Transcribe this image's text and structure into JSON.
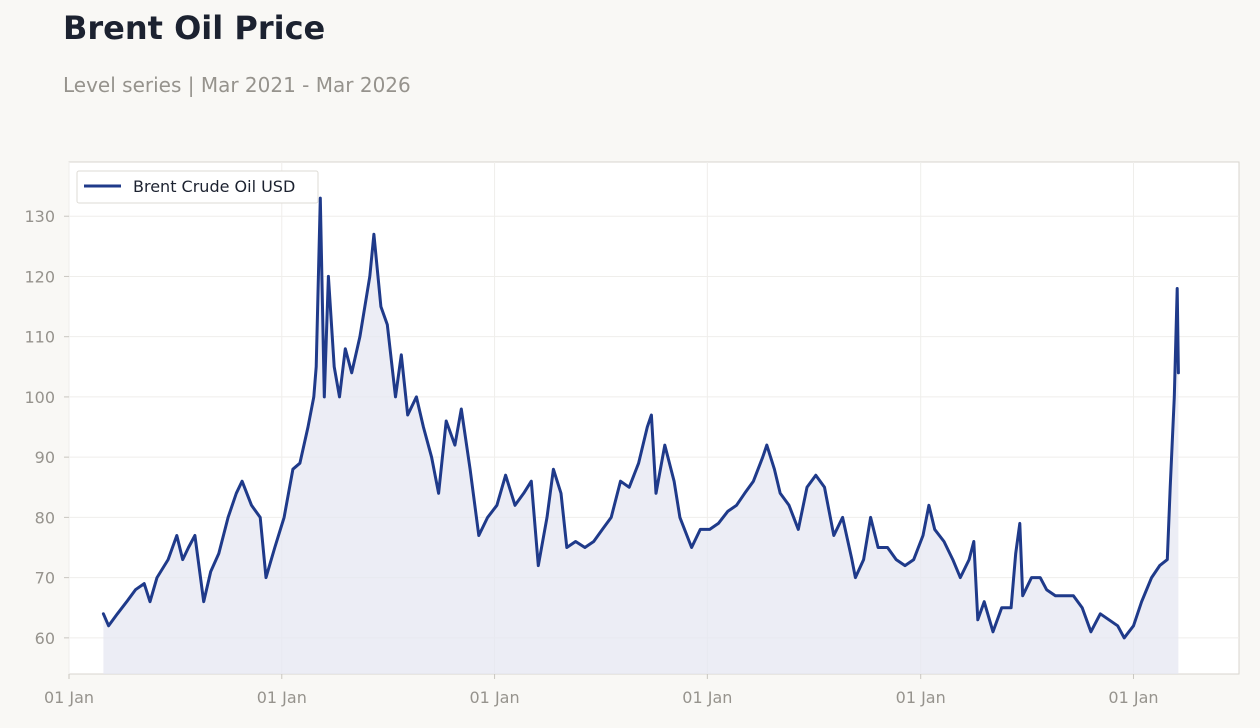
{
  "header": {
    "title": "Brent Oil Price",
    "subtitle": "Level series | Mar 2021 - Mar 2026"
  },
  "chart_data": {
    "type": "area",
    "title": "Brent Oil Price",
    "subtitle": "Level series | Mar 2021 - Mar 2026",
    "xlabel": "",
    "ylabel": "",
    "xlim": [
      "2021-01-01",
      "2026-07-01"
    ],
    "ylim": [
      54,
      139
    ],
    "y_ticks": [
      60,
      70,
      80,
      90,
      100,
      110,
      120,
      130
    ],
    "x_ticks": [
      {
        "date": "2021-01-01",
        "label": "01 Jan"
      },
      {
        "date": "2022-01-01",
        "label": "01 Jan"
      },
      {
        "date": "2023-01-01",
        "label": "01 Jan"
      },
      {
        "date": "2024-01-01",
        "label": "01 Jan"
      },
      {
        "date": "2025-01-01",
        "label": "01 Jan"
      },
      {
        "date": "2026-01-01",
        "label": "01 Jan"
      }
    ],
    "grid": true,
    "legend": {
      "position": "top-left"
    },
    "colors": {
      "line": "#1f3a8a",
      "fill": "#e6e7f1"
    },
    "series": [
      {
        "name": "Brent Crude Oil USD",
        "points": [
          [
            "2021-03-01",
            64
          ],
          [
            "2021-03-10",
            62
          ],
          [
            "2021-03-25",
            64
          ],
          [
            "2021-04-10",
            66
          ],
          [
            "2021-04-25",
            68
          ],
          [
            "2021-05-10",
            69
          ],
          [
            "2021-05-20",
            66
          ],
          [
            "2021-06-01",
            70
          ],
          [
            "2021-06-20",
            73
          ],
          [
            "2021-07-05",
            77
          ],
          [
            "2021-07-15",
            73
          ],
          [
            "2021-07-25",
            75
          ],
          [
            "2021-08-05",
            77
          ],
          [
            "2021-08-20",
            66
          ],
          [
            "2021-09-01",
            71
          ],
          [
            "2021-09-15",
            74
          ],
          [
            "2021-10-01",
            80
          ],
          [
            "2021-10-15",
            84
          ],
          [
            "2021-10-25",
            86
          ],
          [
            "2021-11-10",
            82
          ],
          [
            "2021-11-25",
            80
          ],
          [
            "2021-12-05",
            70
          ],
          [
            "2021-12-20",
            75
          ],
          [
            "2022-01-05",
            80
          ],
          [
            "2022-01-20",
            88
          ],
          [
            "2022-02-01",
            89
          ],
          [
            "2022-02-15",
            95
          ],
          [
            "2022-02-25",
            100
          ],
          [
            "2022-03-01",
            105
          ],
          [
            "2022-03-08",
            133
          ],
          [
            "2022-03-15",
            100
          ],
          [
            "2022-03-22",
            120
          ],
          [
            "2022-04-01",
            105
          ],
          [
            "2022-04-10",
            100
          ],
          [
            "2022-04-20",
            108
          ],
          [
            "2022-05-01",
            104
          ],
          [
            "2022-05-15",
            110
          ],
          [
            "2022-06-01",
            120
          ],
          [
            "2022-06-08",
            127
          ],
          [
            "2022-06-20",
            115
          ],
          [
            "2022-07-01",
            112
          ],
          [
            "2022-07-15",
            100
          ],
          [
            "2022-07-25",
            107
          ],
          [
            "2022-08-05",
            97
          ],
          [
            "2022-08-20",
            100
          ],
          [
            "2022-09-01",
            95
          ],
          [
            "2022-09-15",
            90
          ],
          [
            "2022-09-27",
            84
          ],
          [
            "2022-10-10",
            96
          ],
          [
            "2022-10-25",
            92
          ],
          [
            "2022-11-05",
            98
          ],
          [
            "2022-11-20",
            88
          ],
          [
            "2022-12-05",
            77
          ],
          [
            "2022-12-20",
            80
          ],
          [
            "2023-01-05",
            82
          ],
          [
            "2023-01-20",
            87
          ],
          [
            "2023-02-05",
            82
          ],
          [
            "2023-02-20",
            84
          ],
          [
            "2023-03-05",
            86
          ],
          [
            "2023-03-17",
            72
          ],
          [
            "2023-04-01",
            80
          ],
          [
            "2023-04-12",
            88
          ],
          [
            "2023-04-25",
            84
          ],
          [
            "2023-05-05",
            75
          ],
          [
            "2023-05-20",
            76
          ],
          [
            "2023-06-05",
            75
          ],
          [
            "2023-06-20",
            76
          ],
          [
            "2023-07-05",
            78
          ],
          [
            "2023-07-20",
            80
          ],
          [
            "2023-08-05",
            86
          ],
          [
            "2023-08-20",
            85
          ],
          [
            "2023-09-05",
            89
          ],
          [
            "2023-09-20",
            95
          ],
          [
            "2023-09-27",
            97
          ],
          [
            "2023-10-05",
            84
          ],
          [
            "2023-10-20",
            92
          ],
          [
            "2023-11-05",
            86
          ],
          [
            "2023-11-15",
            80
          ],
          [
            "2023-12-05",
            75
          ],
          [
            "2023-12-20",
            78
          ],
          [
            "2024-01-05",
            78
          ],
          [
            "2024-01-20",
            79
          ],
          [
            "2024-02-05",
            81
          ],
          [
            "2024-02-20",
            82
          ],
          [
            "2024-03-05",
            84
          ],
          [
            "2024-03-20",
            86
          ],
          [
            "2024-04-05",
            90
          ],
          [
            "2024-04-12",
            92
          ],
          [
            "2024-04-25",
            88
          ],
          [
            "2024-05-05",
            84
          ],
          [
            "2024-05-20",
            82
          ],
          [
            "2024-06-05",
            78
          ],
          [
            "2024-06-20",
            85
          ],
          [
            "2024-07-05",
            87
          ],
          [
            "2024-07-20",
            85
          ],
          [
            "2024-08-05",
            77
          ],
          [
            "2024-08-20",
            80
          ],
          [
            "2024-09-05",
            73
          ],
          [
            "2024-09-11",
            70
          ],
          [
            "2024-09-25",
            73
          ],
          [
            "2024-10-07",
            80
          ],
          [
            "2024-10-20",
            75
          ],
          [
            "2024-11-05",
            75
          ],
          [
            "2024-11-20",
            73
          ],
          [
            "2024-12-05",
            72
          ],
          [
            "2024-12-20",
            73
          ],
          [
            "2025-01-05",
            77
          ],
          [
            "2025-01-15",
            82
          ],
          [
            "2025-01-25",
            78
          ],
          [
            "2025-02-10",
            76
          ],
          [
            "2025-02-25",
            73
          ],
          [
            "2025-03-10",
            70
          ],
          [
            "2025-03-25",
            73
          ],
          [
            "2025-04-02",
            76
          ],
          [
            "2025-04-09",
            63
          ],
          [
            "2025-04-20",
            66
          ],
          [
            "2025-05-05",
            61
          ],
          [
            "2025-05-20",
            65
          ],
          [
            "2025-06-05",
            65
          ],
          [
            "2025-06-13",
            74
          ],
          [
            "2025-06-20",
            79
          ],
          [
            "2025-06-25",
            67
          ],
          [
            "2025-07-10",
            70
          ],
          [
            "2025-07-25",
            70
          ],
          [
            "2025-08-05",
            68
          ],
          [
            "2025-08-20",
            67
          ],
          [
            "2025-09-05",
            67
          ],
          [
            "2025-09-20",
            67
          ],
          [
            "2025-10-05",
            65
          ],
          [
            "2025-10-20",
            61
          ],
          [
            "2025-11-05",
            64
          ],
          [
            "2025-11-20",
            63
          ],
          [
            "2025-12-05",
            62
          ],
          [
            "2025-12-16",
            60
          ],
          [
            "2026-01-01",
            62
          ],
          [
            "2026-01-15",
            66
          ],
          [
            "2026-02-01",
            70
          ],
          [
            "2026-02-15",
            72
          ],
          [
            "2026-02-28",
            73
          ],
          [
            "2026-03-05",
            85
          ],
          [
            "2026-03-12",
            100
          ],
          [
            "2026-03-17",
            118
          ],
          [
            "2026-03-19",
            104
          ]
        ]
      }
    ]
  }
}
